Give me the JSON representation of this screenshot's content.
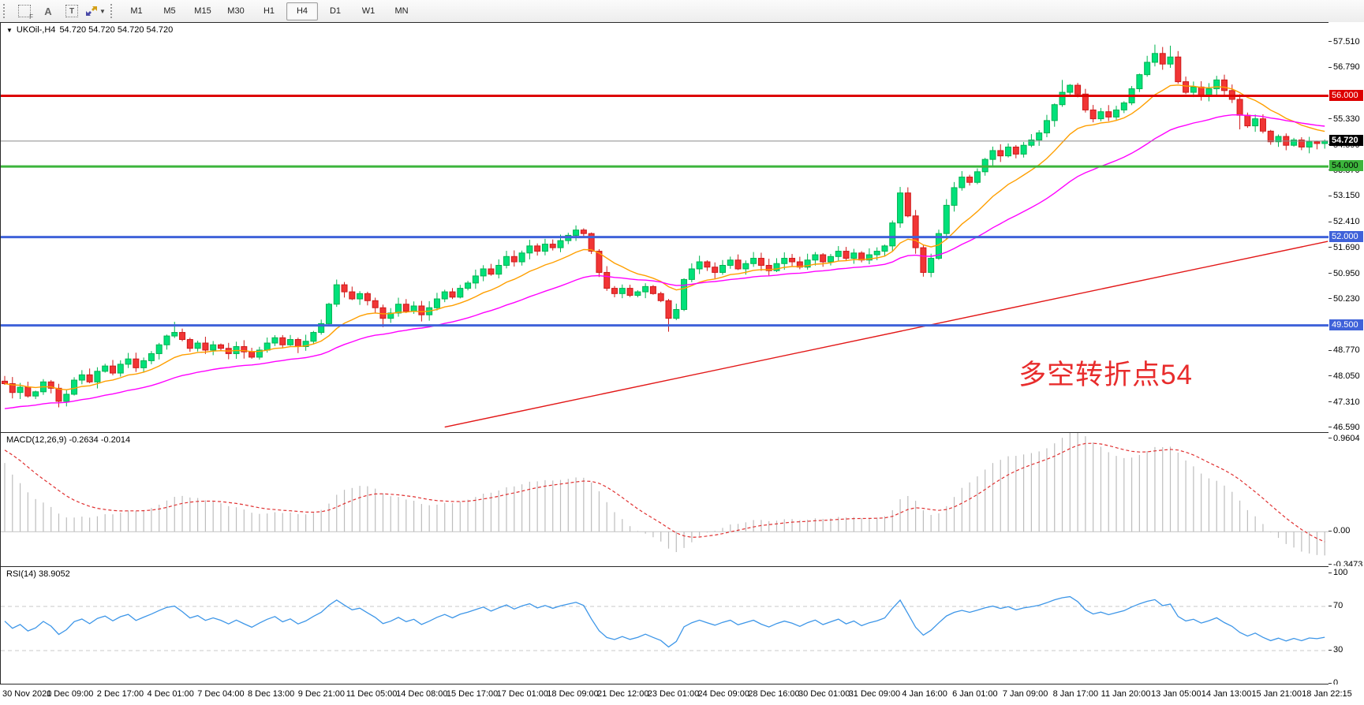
{
  "toolbar": {
    "tools": {
      "label_a": "A",
      "label_t": "T"
    },
    "timeframes": [
      {
        "label": "M1",
        "active": false
      },
      {
        "label": "M5",
        "active": false
      },
      {
        "label": "M15",
        "active": false
      },
      {
        "label": "M30",
        "active": false
      },
      {
        "label": "H1",
        "active": false
      },
      {
        "label": "H4",
        "active": true
      },
      {
        "label": "D1",
        "active": false
      },
      {
        "label": "W1",
        "active": false
      },
      {
        "label": "MN",
        "active": false
      }
    ]
  },
  "header": {
    "symbol": "UKOil-,H4",
    "quotes": "54.720 54.720 54.720 54.720"
  },
  "annotation": {
    "text": "多空转折点54",
    "color": "#e82c2c"
  },
  "chart_data": {
    "type": "candlestick",
    "symbol": "UKOil-",
    "timeframe": "H4",
    "x_labels": [
      "30 Nov 2020",
      "1 Dec 09:00",
      "2 Dec 17:00",
      "4 Dec 01:00",
      "7 Dec 04:00",
      "8 Dec 13:00",
      "9 Dec 21:00",
      "11 Dec 05:00",
      "14 Dec 08:00",
      "15 Dec 17:00",
      "17 Dec 01:00",
      "18 Dec 09:00",
      "21 Dec 12:00",
      "23 Dec 01:00",
      "24 Dec 09:00",
      "28 Dec 16:00",
      "30 Dec 01:00",
      "31 Dec 09:00",
      "4 Jan 16:00",
      "6 Jan 01:00",
      "7 Jan 09:00",
      "8 Jan 17:00",
      "11 Jan 20:00",
      "13 Jan 05:00",
      "14 Jan 13:00",
      "15 Jan 21:00",
      "18 Jan 22:15"
    ],
    "closes": [
      47.85,
      47.6,
      47.75,
      47.5,
      47.62,
      47.9,
      47.72,
      47.35,
      47.55,
      47.95,
      48.1,
      47.9,
      48.2,
      48.35,
      48.15,
      48.4,
      48.55,
      48.3,
      48.5,
      48.7,
      48.95,
      49.2,
      49.3,
      49.1,
      48.85,
      49.0,
      48.8,
      48.95,
      48.85,
      48.7,
      48.9,
      48.75,
      48.6,
      48.8,
      49.0,
      49.15,
      48.95,
      49.1,
      48.9,
      49.05,
      49.3,
      49.55,
      50.1,
      50.65,
      50.45,
      50.25,
      50.4,
      50.2,
      50.0,
      49.7,
      49.85,
      50.1,
      49.9,
      50.05,
      49.8,
      50.0,
      50.25,
      50.45,
      50.3,
      50.55,
      50.7,
      50.9,
      51.1,
      50.95,
      51.2,
      51.45,
      51.3,
      51.55,
      51.75,
      51.6,
      51.8,
      51.7,
      51.9,
      52.05,
      52.2,
      52.1,
      51.6,
      51.0,
      50.55,
      50.4,
      50.55,
      50.35,
      50.45,
      50.6,
      50.4,
      50.2,
      49.7,
      49.95,
      50.8,
      51.1,
      51.3,
      51.15,
      51.0,
      51.2,
      51.35,
      51.1,
      51.25,
      51.4,
      51.2,
      51.05,
      51.25,
      51.4,
      51.3,
      51.15,
      51.35,
      51.5,
      51.3,
      51.45,
      51.6,
      51.4,
      51.55,
      51.35,
      51.5,
      51.6,
      51.75,
      52.4,
      53.25,
      52.6,
      51.7,
      51.0,
      51.4,
      52.1,
      52.9,
      53.4,
      53.7,
      53.55,
      53.85,
      54.2,
      54.45,
      54.3,
      54.55,
      54.35,
      54.6,
      54.75,
      54.95,
      55.3,
      55.75,
      56.1,
      56.3,
      56.05,
      55.6,
      55.35,
      55.55,
      55.4,
      55.6,
      55.8,
      56.2,
      56.6,
      56.95,
      57.2,
      56.9,
      57.1,
      56.4,
      56.1,
      56.25,
      56.0,
      56.2,
      56.45,
      56.15,
      55.9,
      55.45,
      55.15,
      55.35,
      55.0,
      54.7,
      54.85,
      54.6,
      54.75,
      54.55,
      54.7,
      54.65,
      54.72
    ],
    "price_axis": {
      "ylim": [
        46.477,
        58.066
      ],
      "ticks": [
        "57.510",
        "56.790",
        "55.330",
        "54.590",
        "53.870",
        "53.150",
        "52.410",
        "51.690",
        "50.950",
        "50.230",
        "48.770",
        "48.050",
        "47.310",
        "46.590"
      ]
    },
    "current_price": {
      "value": 54.72,
      "label": "54.720",
      "line_color": "#8a8a8a",
      "tag_bg": "#000000",
      "tag_fg": "#ffffff"
    },
    "hlines": [
      {
        "value": 56.0,
        "label": "56.000",
        "color": "#dd0000",
        "width": 3,
        "label_bg": "#dd0000",
        "label_fg": "#ffffff"
      },
      {
        "value": 54.0,
        "label": "54.000",
        "color": "#3cb53c",
        "width": 3,
        "label_bg": "#3cb53c",
        "label_fg": "#000000"
      },
      {
        "value": 52.0,
        "label": "52.000",
        "color": "#3f62d9",
        "width": 3,
        "label_bg": "#3f62d9",
        "label_fg": "#ffffff"
      },
      {
        "value": 49.5,
        "label": "49.500",
        "color": "#3f62d9",
        "width": 3,
        "label_bg": "#3f62d9",
        "label_fg": "#ffffff"
      }
    ],
    "trendline": {
      "from_index": 57,
      "from_value": 46.62,
      "to_index": 172,
      "to_value": 51.88,
      "color": "#e21717"
    },
    "moving_averages": [
      {
        "name": "ma-fast",
        "period": 13,
        "color": "#ff9f00"
      },
      {
        "name": "ma-slow",
        "period": 34,
        "color": "#ff00ff",
        "seed": 47.1
      }
    ],
    "candle_style": {
      "up_fill": "#00e17a",
      "up_stroke": "#00b450",
      "down_fill": "#f13535",
      "down_stroke": "#cf1a1a",
      "wick_overrides": {
        "highs": {
          "22": 49.6,
          "74": 52.33,
          "116": 53.42,
          "137": 56.45,
          "149": 57.45,
          "151": 57.42
        },
        "lows": {
          "7": 47.18,
          "49": 49.45,
          "86": 49.32,
          "119": 50.88,
          "160": 55.05
        }
      }
    },
    "indicators": {
      "macd": {
        "label": "MACD(12,26,9) -0.2634 -0.2014",
        "params": [
          12,
          26,
          9
        ],
        "value": "-0.2634",
        "signal": "-0.2014",
        "axis": [
          "0.9604",
          "0.00",
          "-0.3473"
        ],
        "ylim": [
          -0.358,
          1.025
        ],
        "hist_color": "#bdbdbd",
        "signal_color": "#e03131",
        "zero_line_color": "#c4c4c4",
        "seed": {
          "ema12": 48.55,
          "ema26": 47.72,
          "signal": 0.88
        }
      },
      "rsi": {
        "label": "RSI(14) 38.9052",
        "period": 14,
        "value": "38.9052",
        "axis": [
          "100",
          "70",
          "30",
          "0"
        ],
        "levels": [
          70,
          30
        ],
        "line_color": "#3d96e8",
        "level_color": "#c9c9c9"
      }
    }
  }
}
